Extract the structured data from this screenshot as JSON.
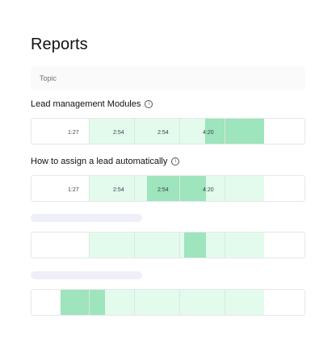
{
  "title": "Reports",
  "topic_header": "Topic",
  "colors": {
    "light_green": "#e3fbec",
    "dark_green": "#9ee4bc",
    "tick": "#d7e9df",
    "skeleton": "#eeeff8"
  },
  "sections": [
    {
      "label": "Lead management Modules",
      "timestamps": [
        "1:27",
        "2:54",
        "2:54",
        "4:20"
      ]
    },
    {
      "label": "How to assign a lead automatically",
      "timestamps": [
        "1:27",
        "2:54",
        "2:54",
        "4:20"
      ]
    }
  ],
  "icons": {
    "info": "info-circle-icon"
  }
}
